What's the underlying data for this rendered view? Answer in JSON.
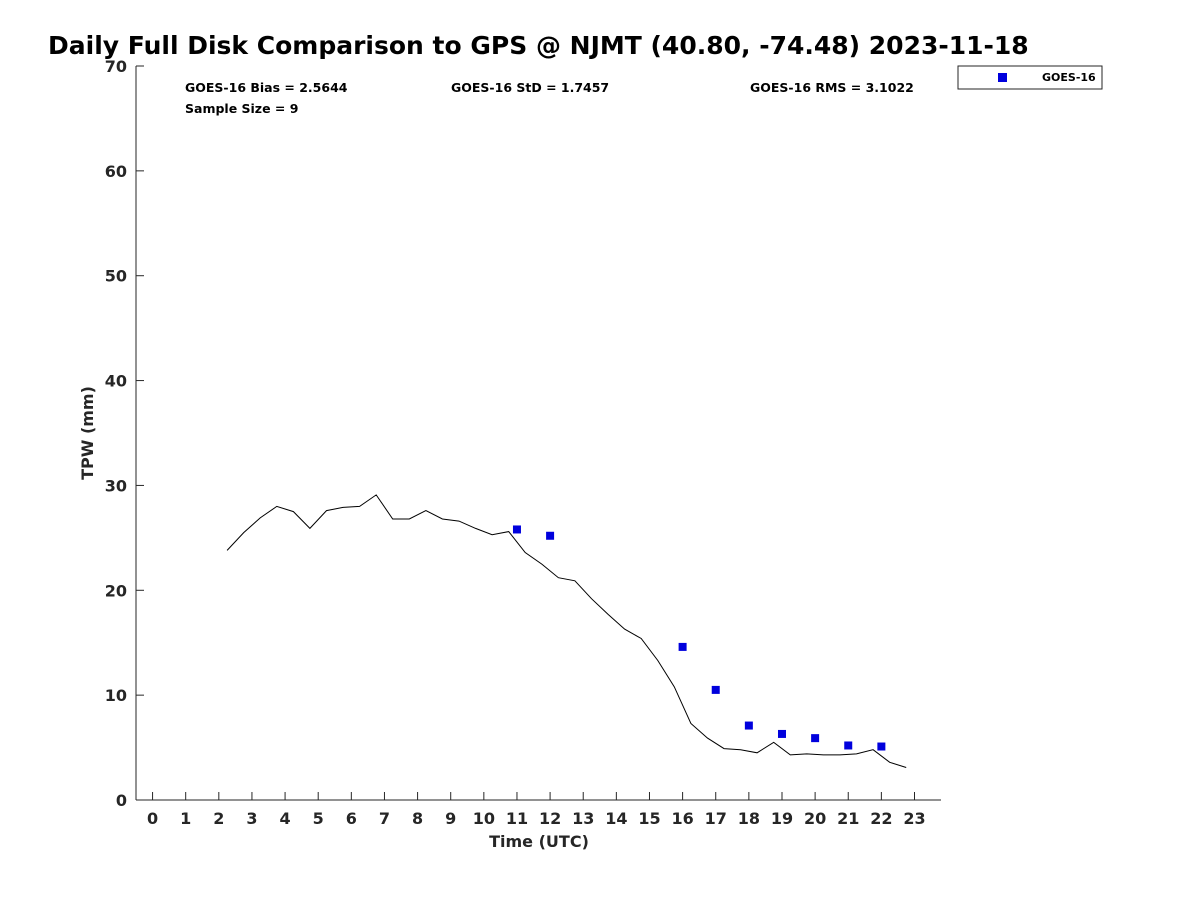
{
  "chart_data": {
    "type": "scatter",
    "title": "Daily Full Disk Comparison to GPS @ NJMT (40.80, -74.48) 2023-11-18",
    "xlabel": "Time (UTC)",
    "ylabel": "TPW (mm)",
    "xlim": [
      -0.5,
      23.8
    ],
    "ylim": [
      0,
      70
    ],
    "xticks": [
      0,
      1,
      2,
      3,
      4,
      5,
      6,
      7,
      8,
      9,
      10,
      11,
      12,
      13,
      14,
      15,
      16,
      17,
      18,
      19,
      20,
      21,
      22,
      23
    ],
    "xtick_labels": [
      "0",
      "1",
      "2",
      "3",
      "4",
      "5",
      "6",
      "7",
      "8",
      "9",
      "10",
      "11",
      "12",
      "13",
      "14",
      "15",
      "16",
      "17",
      "18",
      "19",
      "20",
      "21",
      "22",
      "23"
    ],
    "yticks": [
      0,
      10,
      20,
      30,
      40,
      50,
      60,
      70
    ],
    "ytick_labels": [
      "0",
      "10",
      "20",
      "30",
      "40",
      "50",
      "60",
      "70"
    ],
    "grid": false,
    "legend": {
      "placement": "top-right-outside",
      "entries": [
        "GOES-16"
      ]
    },
    "stats": {
      "bias": "GOES-16 Bias = 2.5644",
      "std": "GOES-16 StD = 1.7457",
      "rms": "GOES-16 RMS = 3.1022",
      "sample": "Sample Size = 9"
    },
    "series": [
      {
        "kind": "line",
        "color": "#000000",
        "x": [
          2.25,
          2.75,
          3.25,
          3.75,
          4.25,
          4.75,
          5.25,
          5.75,
          6.25,
          6.75,
          7.25,
          7.75,
          8.25,
          8.75,
          9.25,
          9.75,
          10.25,
          10.75,
          11.25,
          11.75,
          12.25,
          12.75,
          13.25,
          13.75,
          14.25,
          14.75,
          15.25,
          15.75,
          16.25,
          16.75,
          17.25,
          17.75,
          18.25,
          18.75,
          19.25,
          19.75,
          20.25,
          20.75,
          21.25,
          21.75,
          22.25,
          22.75
        ],
        "y": [
          23.8,
          25.5,
          26.9,
          28.0,
          27.5,
          25.9,
          27.6,
          27.9,
          28.0,
          29.1,
          26.8,
          26.8,
          27.6,
          26.8,
          26.6,
          25.9,
          25.3,
          25.6,
          23.6,
          22.5,
          21.2,
          20.9,
          19.2,
          17.7,
          16.3,
          15.4,
          13.3,
          10.8,
          7.3,
          5.9,
          4.9,
          4.8,
          4.5,
          5.5,
          4.3,
          4.4,
          4.3,
          4.3,
          4.4,
          4.8,
          3.6,
          3.1
        ]
      },
      {
        "kind": "scatter",
        "name": "GOES-16",
        "color": "#0000dd",
        "x": [
          11,
          12,
          16,
          17,
          18,
          19,
          20,
          21,
          22
        ],
        "y": [
          25.8,
          25.2,
          14.6,
          10.5,
          7.1,
          6.3,
          5.9,
          5.2,
          5.1
        ]
      }
    ]
  }
}
